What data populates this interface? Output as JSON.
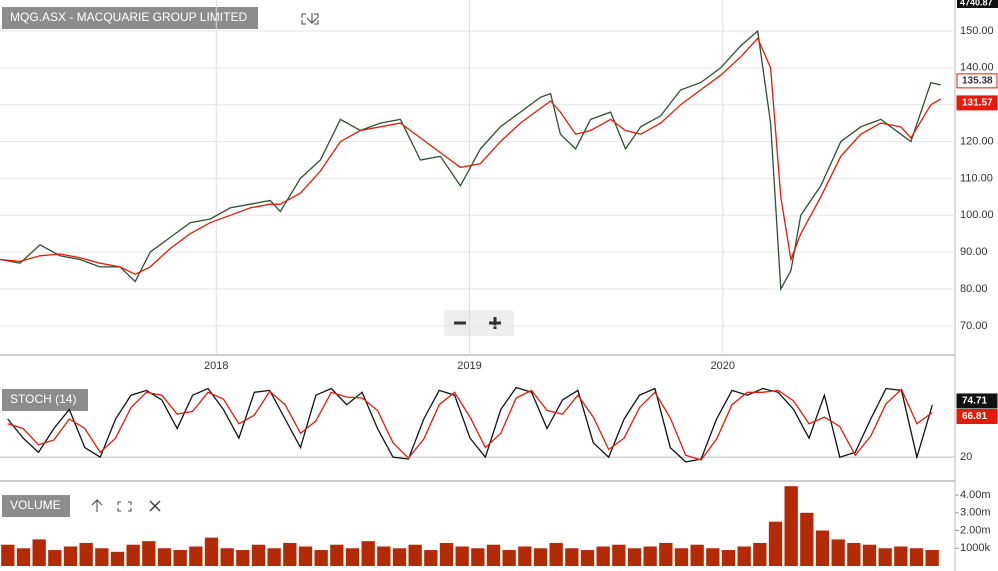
{
  "chart_data": [
    {
      "type": "line",
      "title": "MQG.ASX - MACQUARIE GROUP LIMITED",
      "x": [
        2017.146,
        2017.225,
        2017.304,
        2017.383,
        2017.462,
        2017.541,
        2017.62,
        2017.68,
        2017.739,
        2017.818,
        2017.897,
        2017.976,
        2018.055,
        2018.134,
        2018.213,
        2018.253,
        2018.332,
        2018.411,
        2018.49,
        2018.569,
        2018.648,
        2018.727,
        2018.806,
        2018.885,
        2018.964,
        2019.043,
        2019.122,
        2019.201,
        2019.28,
        2019.32,
        2019.359,
        2019.419,
        2019.478,
        2019.557,
        2019.616,
        2019.676,
        2019.755,
        2019.834,
        2019.913,
        2019.992,
        2020.071,
        2020.138,
        2020.189,
        2020.229,
        2020.269,
        2020.308,
        2020.387,
        2020.466,
        2020.545,
        2020.624,
        2020.703,
        2020.743,
        2020.822,
        2020.861
      ],
      "series": [
        {
          "color": "#2f4f2f",
          "values": [
            88,
            87,
            92,
            89,
            88,
            86,
            86,
            82,
            90,
            94,
            98,
            99,
            102,
            103,
            104,
            101,
            110,
            115,
            126,
            123,
            125,
            126,
            115,
            116,
            108,
            118,
            124,
            128,
            132,
            133,
            122,
            118,
            126,
            128,
            118,
            124,
            127,
            134,
            136,
            140,
            146,
            150,
            125,
            80,
            85,
            100,
            108,
            120,
            124,
            126,
            122,
            120,
            136,
            135.38
          ]
        },
        {
          "color": "#e31b0b",
          "values": [
            88,
            87.5,
            89,
            89.5,
            88.5,
            87,
            86,
            84,
            86,
            91,
            95,
            98,
            100,
            102,
            103,
            103,
            106,
            112,
            120,
            123,
            124,
            125,
            121,
            117,
            113,
            114,
            120,
            125,
            129,
            131,
            128,
            122,
            123,
            126,
            123,
            122,
            125,
            130,
            134,
            138,
            143,
            148,
            140,
            105,
            88,
            95,
            105,
            116,
            122,
            125,
            124,
            121,
            130,
            131.57
          ]
        }
      ],
      "index_tag": 4740.87,
      "xlim": [
        2017.146,
        2020.917
      ],
      "xticks": [
        2018,
        2019,
        2020
      ],
      "ylim": [
        62.1,
        158.4
      ],
      "yticks": [
        {
          "value": 70,
          "label": "70.00"
        },
        {
          "value": 80,
          "label": "80.00"
        },
        {
          "value": 90,
          "label": "90.00"
        },
        {
          "value": 100,
          "label": "100.00"
        },
        {
          "value": 110,
          "label": "110.00"
        },
        {
          "value": 120,
          "label": "120.00"
        },
        {
          "value": 130,
          "label": "130.00"
        },
        {
          "value": 140,
          "label": "140.00"
        },
        {
          "value": 150,
          "label": "150.00"
        }
      ],
      "grid": true
    },
    {
      "type": "line",
      "title": "STOCH (14)",
      "categories": [
        null,
        null,
        null,
        null,
        null,
        null,
        null,
        null,
        null,
        null,
        null,
        null,
        null,
        null,
        null,
        null,
        null,
        null,
        null,
        null,
        null,
        null,
        null,
        null,
        null,
        null,
        null,
        null,
        null,
        null,
        null,
        null,
        null,
        null,
        null,
        null,
        null,
        null,
        null,
        null,
        null,
        null,
        null,
        null,
        null,
        null,
        null,
        null,
        null,
        null,
        null,
        null,
        null,
        null,
        null,
        null,
        null,
        null,
        null,
        null,
        null
      ],
      "series": [
        {
          "color": "#111111",
          "values": [
            60,
            40,
            25,
            50,
            70,
            30,
            20,
            60,
            85,
            90,
            80,
            50,
            85,
            92,
            70,
            40,
            88,
            90,
            60,
            30,
            85,
            92,
            75,
            88,
            50,
            20,
            18,
            60,
            90,
            85,
            40,
            20,
            70,
            93,
            88,
            50,
            80,
            90,
            35,
            20,
            60,
            85,
            92,
            30,
            15,
            18,
            60,
            90,
            85,
            92,
            88,
            70,
            40,
            85,
            20,
            25,
            60,
            92,
            90,
            20,
            74.71
          ]
        },
        {
          "color": "#e31b0b",
          "values": [
            55,
            50,
            33,
            38,
            60,
            50,
            25,
            40,
            72,
            88,
            85,
            65,
            68,
            88,
            81,
            55,
            64,
            89,
            75,
            45,
            58,
            88,
            83,
            82,
            69,
            35,
            19,
            39,
            75,
            88,
            62,
            30,
            45,
            82,
            90,
            69,
            65,
            85,
            62,
            28,
            40,
            72,
            88,
            61,
            22,
            17,
            39,
            75,
            88,
            88,
            90,
            79,
            55,
            62,
            52,
            22,
            42,
            76,
            91,
            55,
            66.81
          ]
        }
      ],
      "ylim": [
        -5,
        125
      ],
      "yticks": [
        20
      ],
      "grid": true
    },
    {
      "type": "bar",
      "title": "VOLUME",
      "categories": [
        null,
        null,
        null,
        null,
        null,
        null,
        null,
        null,
        null,
        null,
        null,
        null,
        null,
        null,
        null,
        null,
        null,
        null,
        null,
        null,
        null,
        null,
        null,
        null,
        null,
        null,
        null,
        null,
        null,
        null,
        null,
        null,
        null,
        null,
        null,
        null,
        null,
        null,
        null,
        null,
        null,
        null,
        null,
        null,
        null,
        null,
        null,
        null,
        null,
        null,
        null,
        null,
        null,
        null,
        null,
        null,
        null,
        null,
        null,
        null
      ],
      "color": "#b52a06",
      "values": [
        1200000,
        1000000,
        1500000,
        900000,
        1100000,
        1300000,
        1000000,
        800000,
        1200000,
        1400000,
        1000000,
        900000,
        1100000,
        1600000,
        1000000,
        900000,
        1200000,
        1000000,
        1300000,
        1100000,
        900000,
        1200000,
        1000000,
        1400000,
        1100000,
        1000000,
        1200000,
        900000,
        1300000,
        1100000,
        1000000,
        1200000,
        900000,
        1100000,
        1000000,
        1300000,
        1000000,
        900000,
        1100000,
        1200000,
        1000000,
        1100000,
        1300000,
        1000000,
        1200000,
        1000000,
        900000,
        1100000,
        1300000,
        2500000,
        4500000,
        3000000,
        2000000,
        1500000,
        1300000,
        1200000,
        1000000,
        1100000,
        1000000,
        900000
      ],
      "ylim": [
        0,
        4680000
      ],
      "yticks": [
        {
          "value": 1000000,
          "label": "1000k"
        },
        {
          "value": 2000000,
          "label": "2.00m"
        },
        {
          "value": 3000000,
          "label": "3.00m"
        },
        {
          "value": 4000000,
          "label": "4.00m"
        }
      ]
    }
  ]
}
